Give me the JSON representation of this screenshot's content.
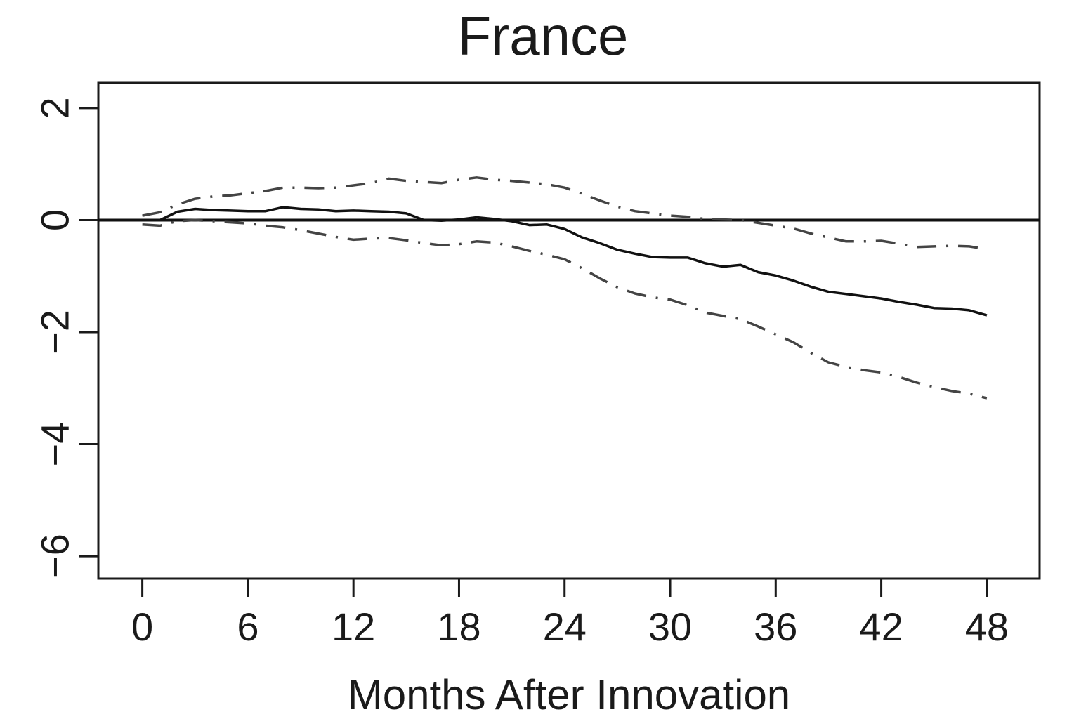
{
  "chart_data": {
    "type": "line",
    "title": "France",
    "xlabel": "Months After Innovation",
    "ylabel": "",
    "xlim": [
      -2.5,
      51
    ],
    "ylim": [
      -6.4,
      2.45
    ],
    "xticks": [
      0,
      6,
      12,
      18,
      24,
      30,
      36,
      42,
      48
    ],
    "yticks": [
      -6,
      -4,
      -2,
      0,
      2
    ],
    "ytick_labels": [
      "−6",
      "−4",
      "−2",
      "0",
      "2"
    ],
    "reference_line_y": 0,
    "grid": false,
    "legend": "none",
    "x": [
      0,
      1,
      2,
      3,
      4,
      5,
      6,
      7,
      8,
      9,
      10,
      11,
      12,
      13,
      14,
      15,
      16,
      17,
      18,
      19,
      20,
      21,
      22,
      23,
      24,
      25,
      26,
      27,
      28,
      29,
      30,
      31,
      32,
      33,
      34,
      35,
      36,
      37,
      38,
      39,
      40,
      41,
      42,
      43,
      44,
      45,
      46,
      47,
      48
    ],
    "series": [
      {
        "style": "solid",
        "values": [
          0.0,
          0.0,
          0.15,
          0.2,
          0.18,
          0.17,
          0.16,
          0.16,
          0.23,
          0.2,
          0.19,
          0.16,
          0.17,
          0.16,
          0.15,
          0.12,
          0.0,
          -0.01,
          0.01,
          0.05,
          0.02,
          -0.02,
          -0.09,
          -0.08,
          -0.16,
          -0.31,
          -0.41,
          -0.53,
          -0.6,
          -0.66,
          -0.67,
          -0.67,
          -0.77,
          -0.83,
          -0.8,
          -0.93,
          -0.99,
          -1.08,
          -1.19,
          -1.28,
          -1.32,
          -1.36,
          -1.4,
          -1.46,
          -1.51,
          -1.57,
          -1.58,
          -1.61,
          -1.7
        ]
      },
      {
        "style": "dash-dot",
        "values": [
          0.08,
          0.14,
          0.28,
          0.38,
          0.42,
          0.44,
          0.48,
          0.52,
          0.58,
          0.58,
          0.57,
          0.58,
          0.62,
          0.66,
          0.74,
          0.7,
          0.68,
          0.66,
          0.72,
          0.76,
          0.72,
          0.7,
          0.67,
          0.64,
          0.58,
          0.47,
          0.35,
          0.24,
          0.16,
          0.12,
          0.08,
          0.06,
          0.02,
          0.01,
          0.0,
          -0.05,
          -0.1,
          -0.15,
          -0.24,
          -0.31,
          -0.38,
          -0.38,
          -0.37,
          -0.42,
          -0.48,
          -0.47,
          -0.46,
          -0.47,
          -0.52
        ]
      },
      {
        "style": "dash-dot",
        "values": [
          -0.08,
          -0.1,
          -0.02,
          0.0,
          -0.02,
          -0.04,
          -0.06,
          -0.1,
          -0.13,
          -0.18,
          -0.24,
          -0.3,
          -0.35,
          -0.33,
          -0.32,
          -0.36,
          -0.41,
          -0.45,
          -0.43,
          -0.38,
          -0.4,
          -0.47,
          -0.55,
          -0.62,
          -0.7,
          -0.86,
          -1.04,
          -1.2,
          -1.31,
          -1.38,
          -1.42,
          -1.52,
          -1.65,
          -1.71,
          -1.77,
          -1.9,
          -2.04,
          -2.18,
          -2.37,
          -2.54,
          -2.62,
          -2.68,
          -2.72,
          -2.8,
          -2.9,
          -2.98,
          -3.05,
          -3.1,
          -3.18
        ]
      }
    ]
  }
}
